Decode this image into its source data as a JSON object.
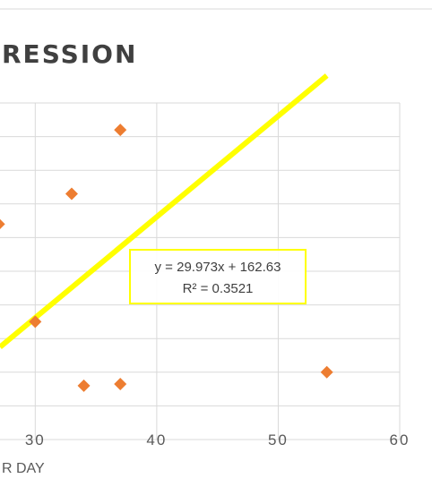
{
  "chart_data": {
    "type": "scatter",
    "title": "RESSION",
    "xlabel": "R DAY",
    "ylabel": "",
    "xlim": [
      27.1,
      60
    ],
    "ylim": [
      700,
      1700
    ],
    "x_ticks": [
      "30",
      "40",
      "50",
      "60"
    ],
    "grid": true,
    "series": [
      {
        "points": [
          {
            "x": 27,
            "y": 1340
          },
          {
            "x": 30,
            "y": 1050
          },
          {
            "x": 33,
            "y": 1430
          },
          {
            "x": 34,
            "y": 860
          },
          {
            "x": 37,
            "y": 1620
          },
          {
            "x": 37,
            "y": 865
          },
          {
            "x": 54,
            "y": 900
          }
        ],
        "color": "#ED7D31",
        "marker": "diamond"
      }
    ],
    "trendline": {
      "type": "linear",
      "slope": 29.973,
      "intercept": 162.63,
      "x_range": [
        27.1,
        54
      ],
      "color": "#FFFF00",
      "equation": "y = 29.973x + 162.63",
      "r_squared": "R² = 0.3521"
    },
    "colors": {
      "grid": "#D9D9D9",
      "text": "#595959",
      "title": "#404040",
      "trend": "#FFFF00",
      "marker": "#ED7D31"
    }
  }
}
